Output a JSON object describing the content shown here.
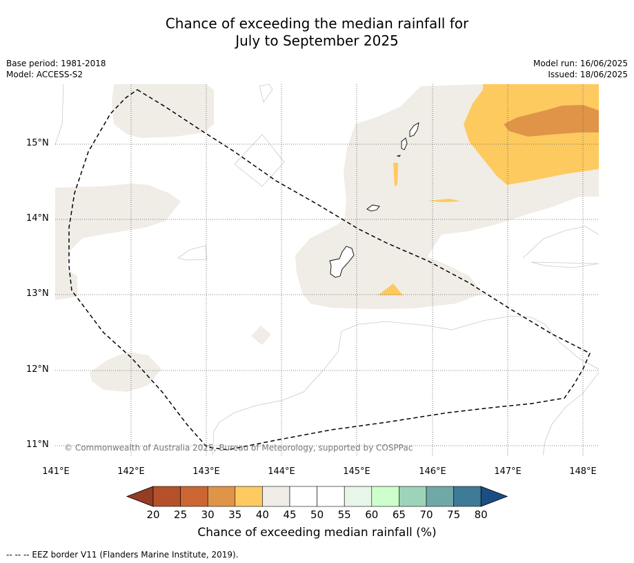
{
  "title_line1": "Chance of exceeding the median rainfall for",
  "title_line2": "July to September 2025",
  "base_period": "Base period: 1981-2018",
  "model": "Model: ACCESS-S2",
  "model_run": "Model run: 16/06/2025",
  "issued": "Issued: 18/06/2025",
  "copyright": "© Commonwealth of Australia 2025, Bureau of Meteorology, supported by COSPPac",
  "lat_labels": [
    "15°N",
    "14°N",
    "13°N",
    "12°N",
    "11°N"
  ],
  "lon_labels": [
    "141°E",
    "142°E",
    "143°E",
    "144°E",
    "145°E",
    "146°E",
    "147°E",
    "148°E"
  ],
  "colorbar": {
    "title": "Chance of exceeding median rainfall (%)",
    "ticks": [
      "20",
      "25",
      "30",
      "35",
      "40",
      "45",
      "50",
      "55",
      "60",
      "65",
      "70",
      "75",
      "80"
    ],
    "colors": [
      "#b5512a",
      "#cc6633",
      "#e09448",
      "#fdca60",
      "#f0ece6",
      "#ffffff",
      "#ffffff",
      "#e8f5e9",
      "#ccffcc",
      "#9dd3b9",
      "#70a8a8",
      "#3f7a96"
    ],
    "under_color": "#943c24",
    "over_color": "#1a4e82"
  },
  "footnote": "-- -- -- EEZ border V11 (Flanders Marine Institute, 2019)."
}
